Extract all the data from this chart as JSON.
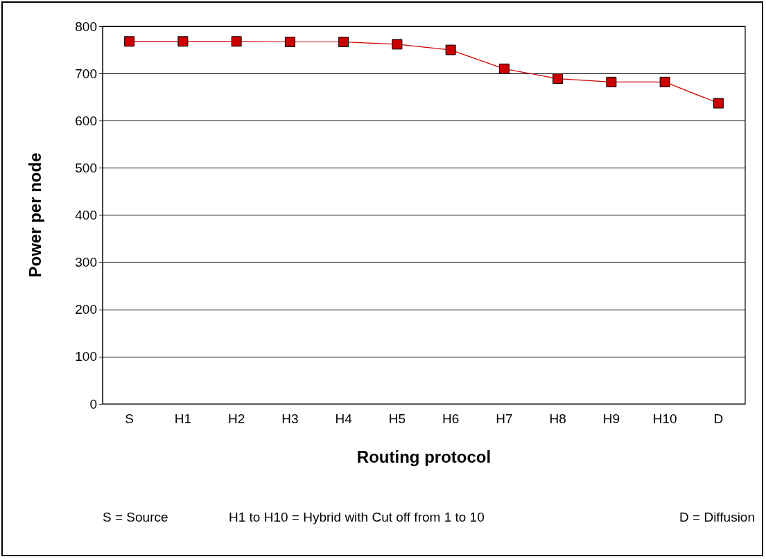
{
  "chart_data": {
    "type": "line",
    "xlabel": "Routing protocol",
    "ylabel": "Power per node",
    "categories": [
      "S",
      "H1",
      "H2",
      "H3",
      "H4",
      "H5",
      "H6",
      "H7",
      "H8",
      "H9",
      "H10",
      "D"
    ],
    "series": [
      {
        "color": "#cc0000",
        "values": [
          768,
          768,
          768,
          767,
          767,
          762,
          750,
          710,
          689,
          682,
          682,
          637
        ]
      }
    ],
    "ylim": [
      0,
      800
    ],
    "yticks": [
      0,
      100,
      200,
      300,
      400,
      500,
      600,
      700,
      800
    ],
    "grid": "y",
    "marker": "square",
    "line_style": "solid",
    "annotations": [
      "S = Source",
      "H1 to H10 = Hybrid with Cut off from 1 to 10",
      "D = Diffusion"
    ]
  }
}
